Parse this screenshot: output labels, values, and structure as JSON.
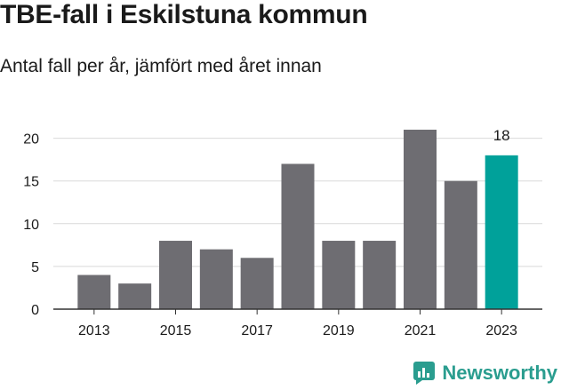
{
  "title": "TBE-fall i Eskilstuna kommun",
  "subtitle": "Antal fall per år, jämfört med året innan",
  "brand": {
    "name": "Newsworthy",
    "color": "#2a9d8f",
    "icon": "newsworthy-logo-icon"
  },
  "colors": {
    "bar": "#6e6d72",
    "highlight": "#00a19a",
    "grid": "#d9d9d9",
    "axis": "#333333",
    "text": "#1a1a1a"
  },
  "chart_data": {
    "type": "bar",
    "title": "TBE-fall i Eskilstuna kommun",
    "subtitle": "Antal fall per år, jämfört med året innan",
    "xlabel": "",
    "ylabel": "",
    "categories": [
      "2013",
      "2014",
      "2015",
      "2016",
      "2017",
      "2018",
      "2019",
      "2020",
      "2021",
      "2022",
      "2023"
    ],
    "values": [
      4,
      3,
      8,
      7,
      6,
      17,
      8,
      8,
      21,
      15,
      18
    ],
    "x_tick_labels": [
      "2013",
      "2015",
      "2017",
      "2019",
      "2021",
      "2023"
    ],
    "y_ticks": [
      0,
      5,
      10,
      15,
      20
    ],
    "ylim": [
      0,
      22
    ],
    "grid": true,
    "legend": "none",
    "highlight_index": 10,
    "data_labels": [
      {
        "index": 10,
        "text": "18"
      }
    ]
  }
}
